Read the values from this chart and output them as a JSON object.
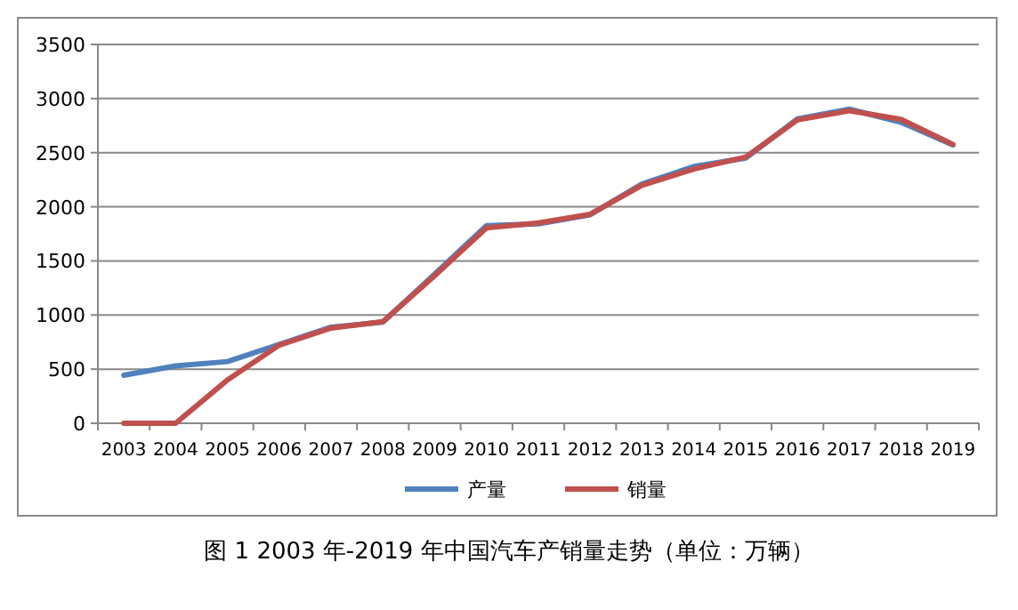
{
  "chart_data": {
    "type": "line",
    "title": "图 1 2003 年-2019 年中国汽车产销量走势（单位：万辆）",
    "categories": [
      "2003",
      "2004",
      "2005",
      "2006",
      "2007",
      "2008",
      "2009",
      "2010",
      "2011",
      "2012",
      "2013",
      "2014",
      "2015",
      "2016",
      "2017",
      "2018",
      "2019"
    ],
    "series": [
      {
        "name": "产量",
        "color": "#4f81bd",
        "values": [
          444,
          530,
          570,
          728,
          888,
          934,
          1379,
          1826,
          1842,
          1927,
          2212,
          2372,
          2450,
          2812,
          2902,
          2781,
          2572
        ]
      },
      {
        "name": "销量",
        "color": "#c0504d",
        "values": [
          0,
          0,
          400,
          722,
          879,
          938,
          1364,
          1806,
          1851,
          1931,
          2198,
          2349,
          2460,
          2803,
          2888,
          2808,
          2577
        ]
      }
    ],
    "ylim": [
      0,
      3500
    ],
    "yticks": [
      0,
      500,
      1000,
      1500,
      2000,
      2500,
      3000,
      3500
    ],
    "grid": "y",
    "legend": "bottom",
    "marker": "none",
    "line_style": "solid"
  }
}
